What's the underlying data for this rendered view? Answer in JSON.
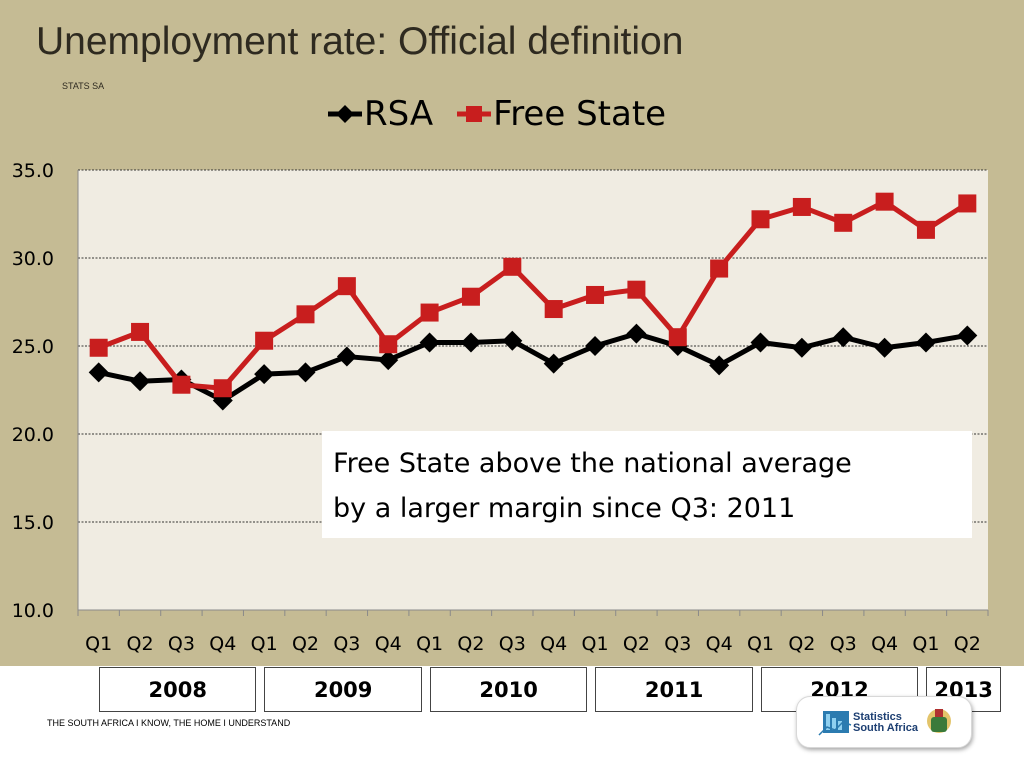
{
  "slide": {
    "title": "Unemployment rate: Official definition",
    "source": "STATS SA",
    "footer": "THE SOUTH AFRICA I KNOW, THE HOME I UNDERSTAND",
    "logo_line1": "Statistics",
    "logo_line2": "South Africa"
  },
  "annotation": {
    "line1": "Free State above the national average",
    "line2": "by a larger margin since Q3: 2011"
  },
  "colors": {
    "background": "#c5bb94",
    "plot_area": "#f0ece2",
    "rsa": "#000000",
    "free_state": "#c81e1e"
  },
  "chart_data": {
    "type": "line",
    "title": "",
    "xlabel": "",
    "ylabel": "",
    "categories": [
      "Q1",
      "Q2",
      "Q3",
      "Q4",
      "Q1",
      "Q2",
      "Q3",
      "Q4",
      "Q1",
      "Q2",
      "Q3",
      "Q4",
      "Q1",
      "Q2",
      "Q3",
      "Q4",
      "Q1",
      "Q2",
      "Q3",
      "Q4",
      "Q1",
      "Q2"
    ],
    "groups": [
      {
        "label": "2008",
        "count": 4
      },
      {
        "label": "2009",
        "count": 4
      },
      {
        "label": "2010",
        "count": 4
      },
      {
        "label": "2011",
        "count": 4
      },
      {
        "label": "2012",
        "count": 4
      },
      {
        "label": "2013",
        "count": 2
      }
    ],
    "yticks": [
      "10.0",
      "15.0",
      "20.0",
      "25.0",
      "30.0",
      "35.0"
    ],
    "ylim": [
      10,
      35
    ],
    "grid": true,
    "legend_position": "top",
    "series": [
      {
        "name": "RSA",
        "marker": "diamond",
        "values": [
          23.5,
          23.0,
          23.1,
          21.9,
          23.4,
          23.5,
          24.4,
          24.2,
          25.2,
          25.2,
          25.3,
          24.0,
          25.0,
          25.7,
          25.0,
          23.9,
          25.2,
          24.9,
          25.5,
          24.9,
          25.2,
          25.6
        ]
      },
      {
        "name": "Free State",
        "marker": "square",
        "values": [
          24.9,
          25.8,
          22.8,
          22.6,
          25.3,
          26.8,
          28.4,
          25.1,
          26.9,
          27.8,
          29.5,
          27.1,
          27.9,
          28.2,
          25.5,
          29.4,
          32.2,
          32.9,
          32.0,
          33.2,
          31.6,
          33.1
        ]
      }
    ]
  }
}
